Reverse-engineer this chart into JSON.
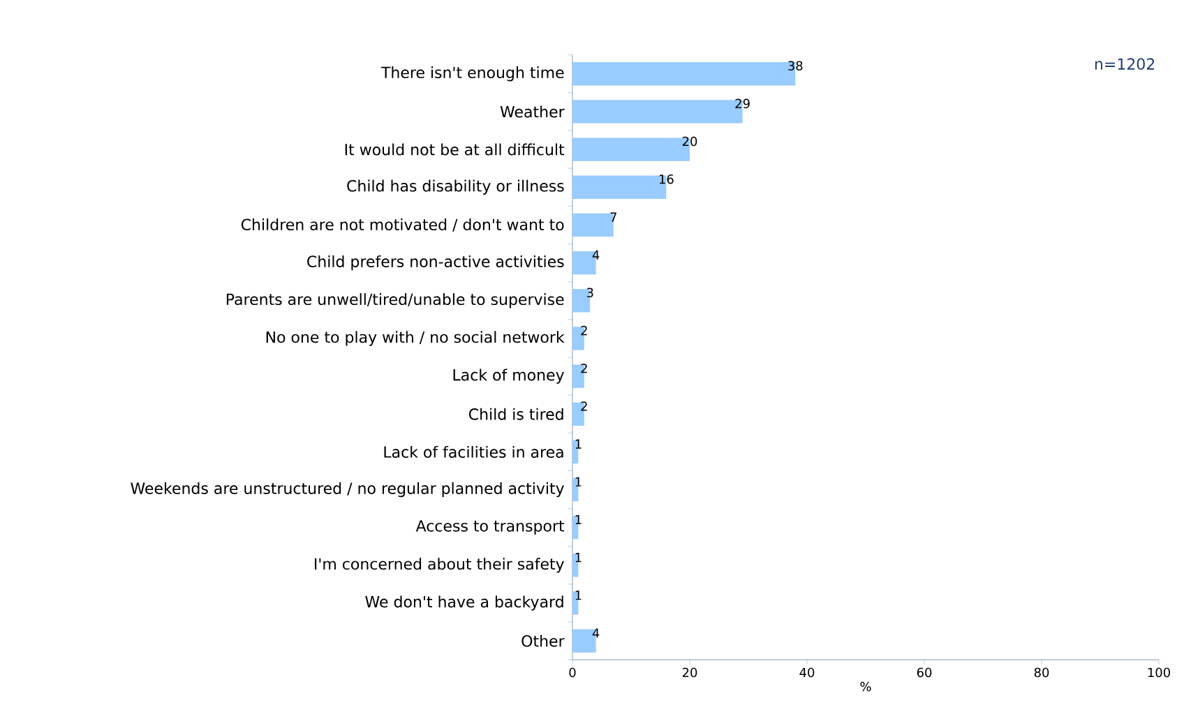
{
  "chart_data": {
    "type": "bar",
    "orientation": "horizontal",
    "categories": [
      "There isn't enough time",
      "Weather",
      "It would not be at all difficult",
      "Child has disability or illness",
      "Children are not motivated / don't want to",
      "Child prefers non-active activities",
      "Parents are unwell/tired/unable to supervise",
      "No one to play with / no social network",
      "Lack of money",
      "Child is tired",
      "Lack of facilities in area",
      "Weekends are unstructured / no regular planned activity",
      "Access to transport",
      "I'm concerned about their safety",
      "We don't have a backyard",
      "Other"
    ],
    "values": [
      38,
      29,
      20,
      16,
      7,
      4,
      3,
      2,
      2,
      2,
      1,
      1,
      1,
      1,
      1,
      4
    ],
    "color": "#99ccff",
    "xlim": [
      0,
      100
    ],
    "xticks": [
      0,
      20,
      40,
      60,
      80,
      100
    ],
    "xlabel": "%",
    "data_labels": true,
    "grid": false,
    "annotations": [
      "n=1202"
    ]
  }
}
